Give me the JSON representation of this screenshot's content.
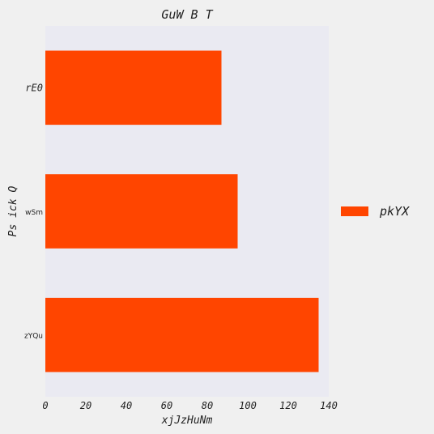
{
  "chart_data": {
    "type": "bar",
    "orientation": "horizontal",
    "title": "GuW B T",
    "xlabel": "xjJzHuNm",
    "ylabel": "Ps ick Q",
    "categories": [
      "rE0",
      "wSm",
      "zYQu"
    ],
    "series": [
      {
        "name": "pkYX",
        "values": [
          87,
          95,
          135
        ]
      }
    ],
    "xlim": [
      0,
      140
    ],
    "xticks": [
      0,
      20,
      40,
      60,
      80,
      100,
      120,
      140
    ],
    "grid": false,
    "legend_position": "right",
    "colors": {
      "bar": "#ff4500",
      "plot_background": "#eaeaf2",
      "figure_background": "#f0f0f0",
      "text": "#222222"
    }
  }
}
